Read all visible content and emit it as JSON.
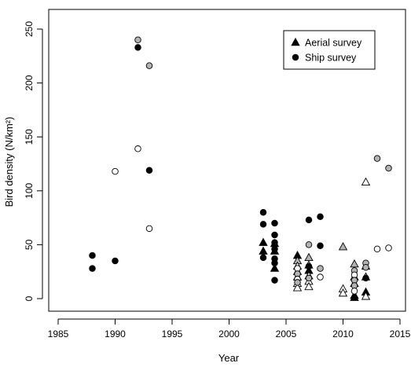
{
  "chart_data": {
    "type": "scatter",
    "title": "",
    "xlabel": "Year",
    "ylabel": "Bird density (N/km²)",
    "xlim": [
      1985,
      2015
    ],
    "ylim": [
      0,
      250
    ],
    "xticks": [
      "1985",
      "1990",
      "1995",
      "2000",
      "2005",
      "2010",
      "2015"
    ],
    "yticks": [
      "0",
      "50",
      "100",
      "150",
      "200",
      "250"
    ],
    "grid": false,
    "legend_position": "top-right",
    "colors": {
      "black": "#000000",
      "grey": "#b3b3b3",
      "white": "#ffffff"
    },
    "legend": [
      {
        "label": "Aerial survey",
        "marker": "triangle"
      },
      {
        "label": "Ship survey",
        "marker": "circle"
      }
    ],
    "series": [
      {
        "name": "Aerial survey",
        "marker": "triangle",
        "points": [
          {
            "x": 2003,
            "y": 52,
            "fill": "black"
          },
          {
            "x": 2003,
            "y": 44,
            "fill": "black"
          },
          {
            "x": 2004,
            "y": 51,
            "fill": "black"
          },
          {
            "x": 2004,
            "y": 44,
            "fill": "black"
          },
          {
            "x": 2004,
            "y": 28,
            "fill": "black"
          },
          {
            "x": 2006,
            "y": 40,
            "fill": "black"
          },
          {
            "x": 2006,
            "y": 35,
            "fill": "grey"
          },
          {
            "x": 2006,
            "y": 30,
            "fill": "white"
          },
          {
            "x": 2006,
            "y": 25,
            "fill": "white"
          },
          {
            "x": 2006,
            "y": 20,
            "fill": "grey"
          },
          {
            "x": 2006,
            "y": 14,
            "fill": "white"
          },
          {
            "x": 2006,
            "y": 10,
            "fill": "white"
          },
          {
            "x": 2007,
            "y": 38,
            "fill": "grey"
          },
          {
            "x": 2007,
            "y": 31,
            "fill": "white"
          },
          {
            "x": 2007,
            "y": 26,
            "fill": "black"
          },
          {
            "x": 2007,
            "y": 21,
            "fill": "white"
          },
          {
            "x": 2007,
            "y": 16,
            "fill": "white"
          },
          {
            "x": 2007,
            "y": 11,
            "fill": "white"
          },
          {
            "x": 2010,
            "y": 48,
            "fill": "grey"
          },
          {
            "x": 2010,
            "y": 9,
            "fill": "white"
          },
          {
            "x": 2010,
            "y": 5,
            "fill": "white"
          },
          {
            "x": 2011,
            "y": 32,
            "fill": "grey"
          },
          {
            "x": 2011,
            "y": 20,
            "fill": "white"
          },
          {
            "x": 2011,
            "y": 14,
            "fill": "white"
          },
          {
            "x": 2011,
            "y": 3,
            "fill": "black"
          },
          {
            "x": 2011,
            "y": 1,
            "fill": "black"
          },
          {
            "x": 2012,
            "y": 108,
            "fill": "white"
          },
          {
            "x": 2012,
            "y": 30,
            "fill": "white"
          },
          {
            "x": 2012,
            "y": 20,
            "fill": "white"
          },
          {
            "x": 2012,
            "y": 6,
            "fill": "black"
          },
          {
            "x": 2012,
            "y": 2,
            "fill": "white"
          }
        ]
      },
      {
        "name": "Ship survey",
        "marker": "circle",
        "points": [
          {
            "x": 1988,
            "y": 40,
            "fill": "black"
          },
          {
            "x": 1988,
            "y": 28,
            "fill": "black"
          },
          {
            "x": 1990,
            "y": 118,
            "fill": "white"
          },
          {
            "x": 1990,
            "y": 35,
            "fill": "black"
          },
          {
            "x": 1992,
            "y": 240,
            "fill": "grey"
          },
          {
            "x": 1992,
            "y": 233,
            "fill": "black"
          },
          {
            "x": 1992,
            "y": 139,
            "fill": "white"
          },
          {
            "x": 1993,
            "y": 216,
            "fill": "grey"
          },
          {
            "x": 1993,
            "y": 119,
            "fill": "black"
          },
          {
            "x": 1993,
            "y": 65,
            "fill": "white"
          },
          {
            "x": 2003,
            "y": 80,
            "fill": "black"
          },
          {
            "x": 2003,
            "y": 69,
            "fill": "black"
          },
          {
            "x": 2003,
            "y": 38,
            "fill": "black"
          },
          {
            "x": 2004,
            "y": 70,
            "fill": "black"
          },
          {
            "x": 2004,
            "y": 59,
            "fill": "black"
          },
          {
            "x": 2004,
            "y": 52,
            "fill": "black"
          },
          {
            "x": 2004,
            "y": 46,
            "fill": "black"
          },
          {
            "x": 2004,
            "y": 37,
            "fill": "black"
          },
          {
            "x": 2004,
            "y": 33,
            "fill": "black"
          },
          {
            "x": 2004,
            "y": 17,
            "fill": "black"
          },
          {
            "x": 2006,
            "y": 28,
            "fill": "white"
          },
          {
            "x": 2006,
            "y": 23,
            "fill": "grey"
          },
          {
            "x": 2006,
            "y": 18,
            "fill": "white"
          },
          {
            "x": 2006,
            "y": 15,
            "fill": "grey"
          },
          {
            "x": 2007,
            "y": 73,
            "fill": "black"
          },
          {
            "x": 2007,
            "y": 50,
            "fill": "grey"
          },
          {
            "x": 2007,
            "y": 30,
            "fill": "black"
          },
          {
            "x": 2007,
            "y": 19,
            "fill": "grey"
          },
          {
            "x": 2008,
            "y": 76,
            "fill": "black"
          },
          {
            "x": 2008,
            "y": 49,
            "fill": "black"
          },
          {
            "x": 2008,
            "y": 28,
            "fill": "grey"
          },
          {
            "x": 2008,
            "y": 20,
            "fill": "white"
          },
          {
            "x": 2011,
            "y": 26,
            "fill": "grey"
          },
          {
            "x": 2011,
            "y": 22,
            "fill": "white"
          },
          {
            "x": 2011,
            "y": 17,
            "fill": "grey"
          },
          {
            "x": 2011,
            "y": 12,
            "fill": "grey"
          },
          {
            "x": 2011,
            "y": 7,
            "fill": "white"
          },
          {
            "x": 2012,
            "y": 33,
            "fill": "grey"
          },
          {
            "x": 2012,
            "y": 29,
            "fill": "grey"
          },
          {
            "x": 2012,
            "y": 19,
            "fill": "black"
          },
          {
            "x": 2013,
            "y": 130,
            "fill": "grey"
          },
          {
            "x": 2013,
            "y": 46,
            "fill": "white"
          },
          {
            "x": 2014,
            "y": 121,
            "fill": "grey"
          },
          {
            "x": 2014,
            "y": 47,
            "fill": "white"
          }
        ]
      }
    ]
  }
}
